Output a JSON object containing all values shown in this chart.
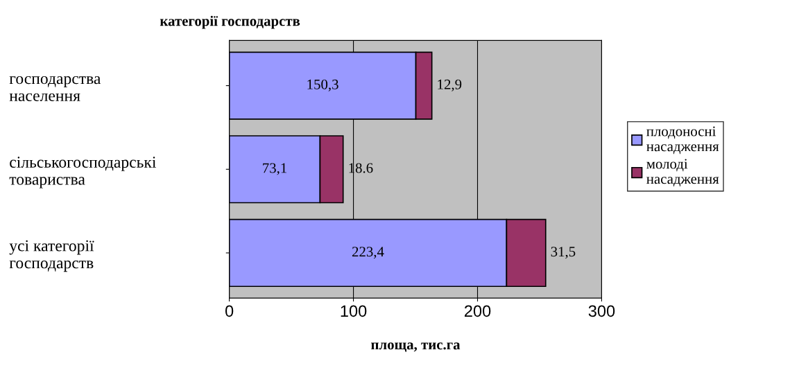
{
  "chart_data": {
    "type": "bar",
    "orientation": "horizontal",
    "stacked": true,
    "title": "категорії господарств",
    "xlabel": "площа, тис.га",
    "categories": [
      "господарства населення",
      "сільськогосподарські товариства",
      "усі категорії господарств"
    ],
    "series": [
      {
        "name": "плодоносні насадження",
        "color": "#9999ff",
        "values": [
          150.3,
          73.1,
          223.4
        ],
        "value_labels": [
          "150,3",
          "73,1",
          "223,4"
        ]
      },
      {
        "name": "молоді насадження",
        "color": "#993366",
        "values": [
          12.9,
          18.6,
          31.5
        ],
        "value_labels": [
          "12,9",
          "18.6",
          "31,5"
        ]
      }
    ],
    "xlim": [
      0,
      300
    ],
    "xticks": [
      0,
      100,
      200,
      300
    ],
    "grid": "x",
    "legend": "right"
  }
}
